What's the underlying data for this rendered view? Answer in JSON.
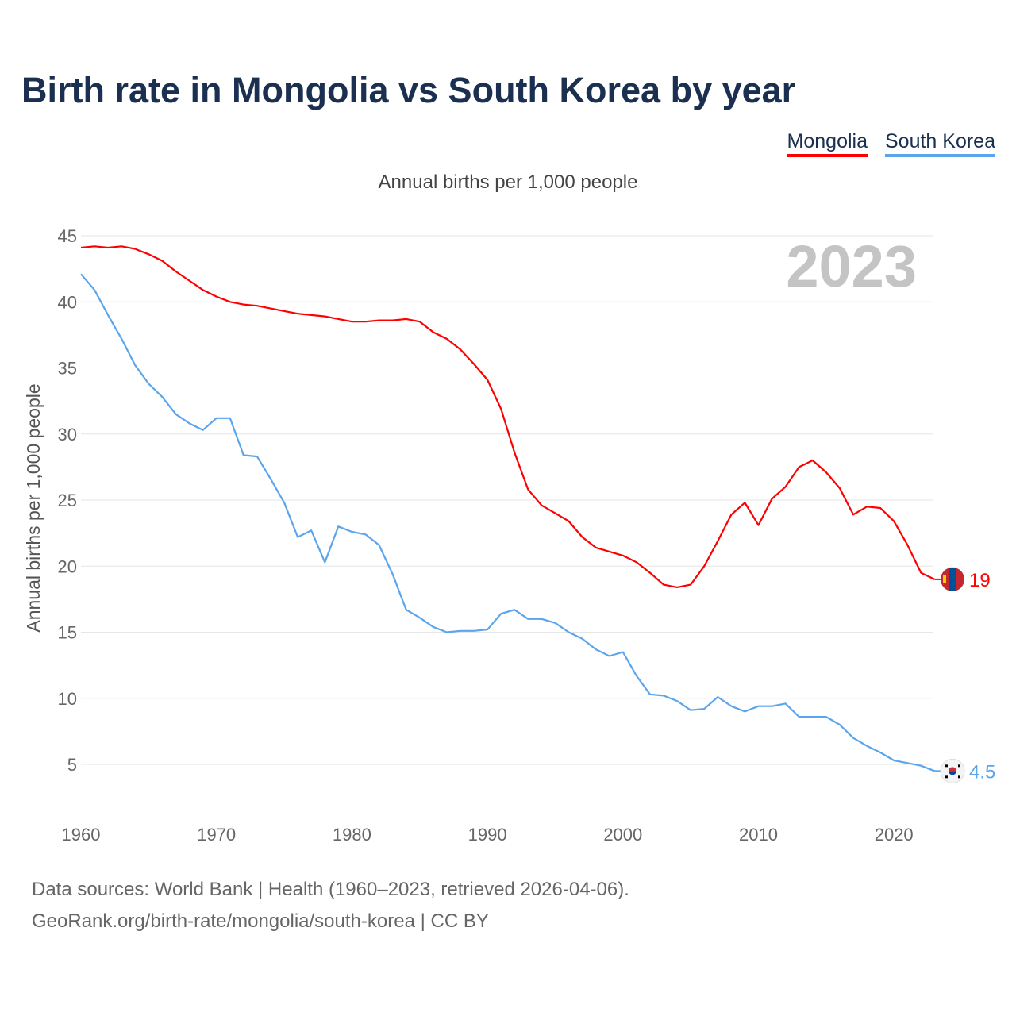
{
  "title": "Birth rate in Mongolia vs South Korea by year",
  "legend": [
    {
      "label": "Mongolia",
      "color": "#ff0000"
    },
    {
      "label": "South Korea",
      "color": "#5aa5ec"
    }
  ],
  "subtitle": "Annual births per 1,000 people",
  "year_watermark": "2023",
  "footer": {
    "line1": "Data sources: World Bank | Health (1960–2023, retrieved 2026-04-06).",
    "line2": "GeoRank.org/birth-rate/mongolia/south-korea | CC BY"
  },
  "chart_data": {
    "type": "line",
    "title": "Birth rate in Mongolia vs South Korea by year",
    "xlabel": "",
    "ylabel": "Annual births per 1,000 people",
    "xlim": [
      1960,
      2023
    ],
    "ylim": [
      5,
      45
    ],
    "x_ticks": [
      "1960",
      "1970",
      "1980",
      "1990",
      "2000",
      "2010",
      "2020"
    ],
    "y_ticks": [
      "5",
      "10",
      "15",
      "20",
      "25",
      "30",
      "35",
      "40",
      "45"
    ],
    "grid": true,
    "legend_position": "top-right",
    "x": [
      1960,
      1961,
      1962,
      1963,
      1964,
      1965,
      1966,
      1967,
      1968,
      1969,
      1970,
      1971,
      1972,
      1973,
      1974,
      1975,
      1976,
      1977,
      1978,
      1979,
      1980,
      1981,
      1982,
      1983,
      1984,
      1985,
      1986,
      1987,
      1988,
      1989,
      1990,
      1991,
      1992,
      1993,
      1994,
      1995,
      1996,
      1997,
      1998,
      1999,
      2000,
      2001,
      2002,
      2003,
      2004,
      2005,
      2006,
      2007,
      2008,
      2009,
      2010,
      2011,
      2012,
      2013,
      2014,
      2015,
      2016,
      2017,
      2018,
      2019,
      2020,
      2021,
      2022,
      2023
    ],
    "series": [
      {
        "name": "Mongolia",
        "color": "#ff0000",
        "end_label": "19",
        "values": [
          44.1,
          44.2,
          44.1,
          44.2,
          44.0,
          43.6,
          43.1,
          42.3,
          41.6,
          40.9,
          40.4,
          40.0,
          39.8,
          39.7,
          39.5,
          39.3,
          39.1,
          39.0,
          38.9,
          38.7,
          38.5,
          38.5,
          38.6,
          38.6,
          38.7,
          38.5,
          37.7,
          37.2,
          36.4,
          35.3,
          34.1,
          31.9,
          28.6,
          25.8,
          24.6,
          24.0,
          23.4,
          22.2,
          21.4,
          21.1,
          20.8,
          20.3,
          19.5,
          18.6,
          18.4,
          18.6,
          20.0,
          21.9,
          23.9,
          24.8,
          23.1,
          25.1,
          26.0,
          27.5,
          28.0,
          27.1,
          25.9,
          23.9,
          24.5,
          24.4,
          23.4,
          21.6,
          19.5,
          19.0
        ]
      },
      {
        "name": "South Korea",
        "color": "#5aa5ec",
        "end_label": "4.5",
        "values": [
          42.1,
          40.9,
          39.0,
          37.2,
          35.2,
          33.8,
          32.8,
          31.5,
          30.8,
          30.3,
          31.2,
          31.2,
          28.4,
          28.3,
          26.6,
          24.8,
          22.2,
          22.7,
          20.3,
          23.0,
          22.6,
          22.4,
          21.6,
          19.4,
          16.7,
          16.1,
          15.4,
          15.0,
          15.1,
          15.1,
          15.2,
          16.4,
          16.7,
          16.0,
          16.0,
          15.7,
          15.0,
          14.5,
          13.7,
          13.2,
          13.5,
          11.7,
          10.3,
          10.2,
          9.8,
          9.1,
          9.2,
          10.1,
          9.4,
          9.0,
          9.4,
          9.4,
          9.6,
          8.6,
          8.6,
          8.6,
          8.0,
          7.0,
          6.4,
          5.9,
          5.3,
          5.1,
          4.9,
          4.5
        ]
      }
    ]
  }
}
